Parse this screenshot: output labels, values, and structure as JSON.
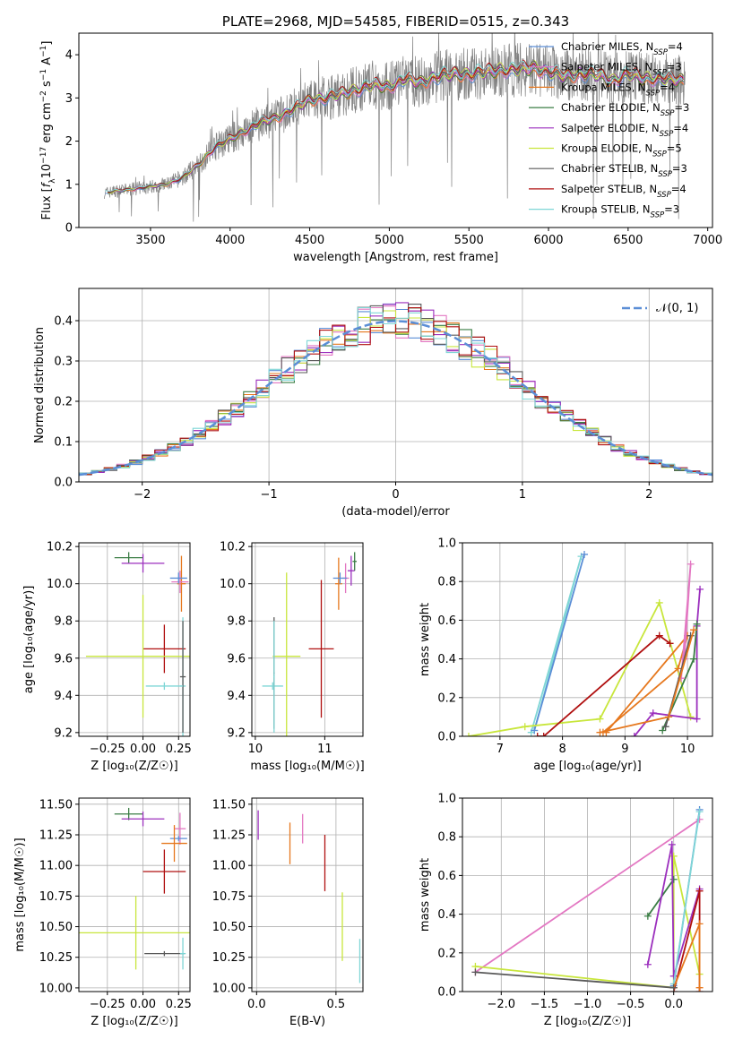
{
  "colors": {
    "chabrier_miles": "#5b8ed6",
    "salpeter_miles": "#e377c2",
    "kroupa_miles": "#e6781e",
    "chabrier_elodie": "#3a7d44",
    "salpeter_elodie": "#9b2fbd",
    "kroupa_elodie": "#c8e63c",
    "chabrier_stelib": "#5a5a5a",
    "salpeter_stelib": "#b01010",
    "kroupa_stelib": "#7fd6d6",
    "data_spectrum": "#808080",
    "normal_curve": "#5b8ed6",
    "grid": "#b0b0b0"
  },
  "chart_data": [
    {
      "id": "spectrum",
      "type": "line",
      "title": "PLATE=2968, MJD=54585, FIBERID=0515, z=0.343",
      "xlabel": "wavelength [Angstrom, rest frame]",
      "ylabel_parts": [
        "Flux [",
        "f",
        "λ",
        "10",
        "−17",
        " erg cm",
        "−2",
        " s",
        "−1",
        " A",
        "−1",
        "]"
      ],
      "xlim": [
        3050,
        7030
      ],
      "ylim": [
        0,
        4.5
      ],
      "xticks": [
        3500,
        4000,
        4500,
        5000,
        5500,
        6000,
        6500,
        7000
      ],
      "yticks": [
        0,
        1,
        2,
        3,
        4
      ],
      "grid": false,
      "legend_position": "right",
      "data_spectrum_range": [
        3210,
        6860
      ],
      "continuum": [
        [
          3200,
          0.8
        ],
        [
          3300,
          0.85
        ],
        [
          3450,
          0.92
        ],
        [
          3600,
          1.0
        ],
        [
          3700,
          1.15
        ],
        [
          3800,
          1.45
        ],
        [
          3900,
          1.85
        ],
        [
          4000,
          2.05
        ],
        [
          4100,
          2.25
        ],
        [
          4200,
          2.45
        ],
        [
          4300,
          2.55
        ],
        [
          4400,
          2.75
        ],
        [
          4500,
          2.95
        ],
        [
          4600,
          3.0
        ],
        [
          4700,
          3.1
        ],
        [
          4800,
          3.2
        ],
        [
          4900,
          3.3
        ],
        [
          5000,
          3.25
        ],
        [
          5100,
          3.45
        ],
        [
          5200,
          3.35
        ],
        [
          5300,
          3.5
        ],
        [
          5400,
          3.55
        ],
        [
          5500,
          3.55
        ],
        [
          5600,
          3.6
        ],
        [
          5700,
          3.65
        ],
        [
          5800,
          3.65
        ],
        [
          5900,
          3.7
        ],
        [
          6000,
          3.6
        ],
        [
          6100,
          3.5
        ],
        [
          6200,
          3.55
        ],
        [
          6300,
          3.55
        ],
        [
          6400,
          3.4
        ],
        [
          6500,
          3.55
        ],
        [
          6600,
          3.45
        ],
        [
          6700,
          3.45
        ],
        [
          6850,
          3.4
        ]
      ],
      "series": [
        {
          "name_prefix": "Chabrier MILES, N",
          "n_ssp": "=4",
          "color_key": "chabrier_miles"
        },
        {
          "name_prefix": "Salpeter MILES, N",
          "n_ssp": "=3",
          "color_key": "salpeter_miles"
        },
        {
          "name_prefix": "Kroupa MILES, N",
          "n_ssp": "=4",
          "color_key": "kroupa_miles"
        },
        {
          "name_prefix": "Chabrier ELODIE, N",
          "n_ssp": "=3",
          "color_key": "chabrier_elodie"
        },
        {
          "name_prefix": "Salpeter ELODIE, N",
          "n_ssp": "=4",
          "color_key": "salpeter_elodie"
        },
        {
          "name_prefix": "Kroupa ELODIE, N",
          "n_ssp": "=5",
          "color_key": "kroupa_elodie"
        },
        {
          "name_prefix": "Chabrier STELIB, N",
          "n_ssp": "=3",
          "color_key": "chabrier_stelib"
        },
        {
          "name_prefix": "Salpeter STELIB, N",
          "n_ssp": "=4",
          "color_key": "salpeter_stelib"
        },
        {
          "name_prefix": "Kroupa STELIB, N",
          "n_ssp": "=3",
          "color_key": "kroupa_stelib"
        }
      ],
      "n_ssp_subscript": "SSP"
    },
    {
      "id": "residuals",
      "type": "histogram",
      "xlabel": "(data-model)/error",
      "ylabel": "Normed distribution",
      "xlim": [
        -2.5,
        2.5
      ],
      "ylim": [
        0,
        0.48
      ],
      "xticks": [
        -2,
        -1,
        0,
        1,
        2
      ],
      "yticks": [
        0.0,
        0.1,
        0.2,
        0.3,
        0.4
      ],
      "grid": true,
      "legend": "𝒩(0, 1)",
      "legend_position": "top-right",
      "bin_width": 0.1
    },
    {
      "id": "age_vs_Z",
      "type": "errorbar",
      "xlabel": "Z [log₁₀(Z/Z☉)]",
      "ylabel": "age  [log₁₀(age/yr)]",
      "xlim": [
        -0.45,
        0.33
      ],
      "ylim": [
        9.18,
        10.22
      ],
      "xticks": [
        -0.25,
        0.0,
        0.25
      ],
      "yticks": [
        9.2,
        9.4,
        9.6,
        9.8,
        10.0,
        10.2
      ],
      "grid": true,
      "points": [
        {
          "c": "chabrier_elodie",
          "x": -0.1,
          "xe": 0.1,
          "y": 10.14,
          "ye": 0.03
        },
        {
          "c": "salpeter_elodie",
          "x": 0.0,
          "xe": 0.15,
          "y": 10.11,
          "ye": 0.05
        },
        {
          "c": "kroupa_miles",
          "x": 0.27,
          "xe": 0.03,
          "y": 10.0,
          "ye": 0.15
        },
        {
          "c": "salpeter_miles",
          "x": 0.26,
          "xe": 0.06,
          "y": 10.01,
          "ye": 0.06
        },
        {
          "c": "chabrier_miles",
          "x": 0.25,
          "xe": 0.06,
          "y": 10.03,
          "ye": 0.03
        },
        {
          "c": "salpeter_stelib",
          "x": 0.15,
          "xe": 0.15,
          "y": 9.65,
          "ye": 0.13
        },
        {
          "c": "kroupa_elodie",
          "x": 0.0,
          "xe": 0.4,
          "y": 9.61,
          "ye": 0.33
        },
        {
          "c": "kroupa_stelib",
          "x": 0.28,
          "xe": 0.02,
          "y": 9.45,
          "ye": 0.37
        },
        {
          "c": "chabrier_stelib",
          "x": 0.28,
          "xe": 0.02,
          "y": 9.5,
          "ye": 0.3
        },
        {
          "c": "kroupa_stelib",
          "x": 0.15,
          "xe": 0.13,
          "y": 9.45,
          "ye": 0.02
        }
      ]
    },
    {
      "id": "age_vs_mass",
      "type": "errorbar",
      "xlabel": "mass [log₁₀(M/M☉)]",
      "ylabel": "",
      "xlim": [
        9.95,
        11.55
      ],
      "ylim": [
        9.18,
        10.22
      ],
      "xticks": [
        10,
        11
      ],
      "yticks": [
        9.2,
        9.4,
        9.6,
        9.8,
        10.0,
        10.2
      ],
      "grid": true,
      "points": [
        {
          "c": "chabrier_elodie",
          "x": 11.43,
          "xe": 0.03,
          "y": 10.12,
          "ye": 0.05
        },
        {
          "c": "salpeter_elodie",
          "x": 11.38,
          "xe": 0.05,
          "y": 10.07,
          "ye": 0.08
        },
        {
          "c": "kroupa_miles",
          "x": 11.2,
          "xe": 0.05,
          "y": 10.0,
          "ye": 0.14
        },
        {
          "c": "salpeter_miles",
          "x": 11.3,
          "xe": 0.05,
          "y": 10.03,
          "ye": 0.08
        },
        {
          "c": "chabrier_miles",
          "x": 11.22,
          "xe": 0.1,
          "y": 10.03,
          "ye": 0.03
        },
        {
          "c": "salpeter_stelib",
          "x": 10.95,
          "xe": 0.18,
          "y": 9.65,
          "ye": 0.37
        },
        {
          "c": "kroupa_elodie",
          "x": 10.45,
          "xe": 0.2,
          "y": 9.61,
          "ye": 0.45
        },
        {
          "c": "kroupa_stelib",
          "x": 10.25,
          "xe": 0.15,
          "y": 9.45,
          "ye": 0.02
        },
        {
          "c": "chabrier_stelib",
          "x": 10.27,
          "xe": 0.01,
          "y": 9.52,
          "ye": 0.3
        },
        {
          "c": "kroupa_stelib",
          "x": 10.27,
          "xe": 0.01,
          "y": 9.5,
          "ye": 0.3
        }
      ]
    },
    {
      "id": "mass_weight_vs_age",
      "type": "line",
      "xlabel": "age  [log₁₀(age/yr)]",
      "ylabel": "mass weight",
      "xlim": [
        6.4,
        10.4
      ],
      "ylim": [
        0,
        1.0
      ],
      "xticks": [
        7,
        8,
        9,
        10
      ],
      "yticks": [
        0.0,
        0.2,
        0.4,
        0.6,
        0.8,
        1.0
      ],
      "grid": true,
      "series": [
        {
          "c": "kroupa_stelib",
          "points": [
            [
              7.5,
              0.02
            ],
            [
              8.3,
              0.93
            ],
            [
              7.55,
              0.03
            ]
          ]
        },
        {
          "c": "chabrier_miles",
          "points": [
            [
              7.55,
              0.03
            ],
            [
              8.35,
              0.94
            ]
          ]
        },
        {
          "c": "kroupa_elodie",
          "points": [
            [
              6.5,
              0.0
            ],
            [
              7.4,
              0.05
            ],
            [
              8.6,
              0.09
            ],
            [
              9.55,
              0.69
            ],
            [
              10.05,
              0.1
            ]
          ]
        },
        {
          "c": "salpeter_stelib",
          "points": [
            [
              7.6,
              0.0
            ],
            [
              7.7,
              0.0
            ],
            [
              9.55,
              0.52
            ],
            [
              9.72,
              0.48
            ]
          ]
        },
        {
          "c": "kroupa_miles",
          "points": [
            [
              8.65,
              0.02
            ],
            [
              9.85,
              0.35
            ],
            [
              10.0,
              0.52
            ],
            [
              8.7,
              0.02
            ]
          ]
        },
        {
          "c": "salpeter_elodie",
          "points": [
            [
              9.15,
              0.0
            ],
            [
              9.45,
              0.12
            ],
            [
              10.15,
              0.09
            ],
            [
              10.15,
              0.57
            ],
            [
              10.2,
              0.76
            ]
          ]
        },
        {
          "c": "chabrier_elodie",
          "points": [
            [
              9.6,
              0.03
            ],
            [
              10.1,
              0.4
            ],
            [
              10.15,
              0.58
            ]
          ]
        },
        {
          "c": "salpeter_miles",
          "points": [
            [
              9.9,
              0.3
            ],
            [
              10.05,
              0.89
            ],
            [
              9.95,
              0.4
            ]
          ]
        },
        {
          "c": "chabrier_stelib",
          "points": [
            [
              9.65,
              0.05
            ],
            [
              10.05,
              0.52
            ]
          ]
        },
        {
          "c": "kroupa_miles",
          "points": [
            [
              8.6,
              0.02
            ],
            [
              9.7,
              0.1
            ],
            [
              10.1,
              0.55
            ]
          ]
        }
      ]
    },
    {
      "id": "mass_vs_Z",
      "type": "errorbar",
      "xlabel": "Z [log₁₀(Z/Z☉)]",
      "ylabel": "mass [log₁₀(M/M☉)]",
      "xlim": [
        -0.45,
        0.33
      ],
      "ylim": [
        9.97,
        11.55
      ],
      "xticks": [
        -0.25,
        0.0,
        0.25
      ],
      "yticks": [
        10.0,
        10.25,
        10.5,
        10.75,
        11.0,
        11.25,
        11.5
      ],
      "grid": true,
      "points": [
        {
          "c": "chabrier_elodie",
          "x": -0.1,
          "xe": 0.1,
          "y": 11.42,
          "ye": 0.05
        },
        {
          "c": "salpeter_elodie",
          "x": 0.0,
          "xe": 0.15,
          "y": 11.38,
          "ye": 0.06
        },
        {
          "c": "salpeter_miles",
          "x": 0.26,
          "xe": 0.04,
          "y": 11.3,
          "ye": 0.13
        },
        {
          "c": "chabrier_miles",
          "x": 0.25,
          "xe": 0.06,
          "y": 11.22,
          "ye": 0.02
        },
        {
          "c": "kroupa_miles",
          "x": 0.22,
          "xe": 0.09,
          "y": 11.18,
          "ye": 0.15
        },
        {
          "c": "salpeter_stelib",
          "x": 0.15,
          "xe": 0.15,
          "y": 10.95,
          "ye": 0.18
        },
        {
          "c": "kroupa_elodie",
          "x": -0.05,
          "xe": 0.4,
          "y": 10.45,
          "ye": 0.3
        },
        {
          "c": "chabrier_stelib",
          "x": 0.15,
          "xe": 0.14,
          "y": 10.28,
          "ye": 0.02
        },
        {
          "c": "kroupa_stelib",
          "x": 0.28,
          "xe": 0.02,
          "y": 10.28,
          "ye": 0.13
        }
      ]
    },
    {
      "id": "mass_vs_ebv",
      "type": "errorbar",
      "xlabel": "E(B-V)",
      "ylabel": "",
      "xlim": [
        -0.03,
        0.67
      ],
      "ylim": [
        9.97,
        11.55
      ],
      "xticks": [
        0.0,
        0.5
      ],
      "yticks": [
        10.0,
        10.25,
        10.5,
        10.75,
        11.0,
        11.25,
        11.5
      ],
      "grid": true,
      "points": [
        {
          "c": "salpeter_elodie",
          "x": 0.01,
          "y": 11.33,
          "ye": 0.12
        },
        {
          "c": "kroupa_miles",
          "x": 0.21,
          "y": 11.18,
          "ye": 0.17
        },
        {
          "c": "salpeter_miles",
          "x": 0.29,
          "y": 11.3,
          "ye": 0.12
        },
        {
          "c": "salpeter_stelib",
          "x": 0.43,
          "y": 11.02,
          "ye": 0.23
        },
        {
          "c": "kroupa_elodie",
          "x": 0.54,
          "y": 10.5,
          "ye": 0.28
        },
        {
          "c": "kroupa_stelib",
          "x": 0.65,
          "y": 10.22,
          "ye": 0.18
        }
      ]
    },
    {
      "id": "mass_weight_vs_Z",
      "type": "line",
      "xlabel": "Z [log₁₀(Z/Z☉)]",
      "ylabel": "mass weight",
      "xlim": [
        -2.45,
        0.45
      ],
      "ylim": [
        0,
        1.0
      ],
      "xticks": [
        -2.0,
        -1.5,
        -1.0,
        -0.5,
        0.0
      ],
      "yticks": [
        0.0,
        0.2,
        0.4,
        0.6,
        0.8,
        1.0
      ],
      "grid": true,
      "series": [
        {
          "c": "salpeter_miles",
          "points": [
            [
              -2.3,
              0.1
            ],
            [
              0.3,
              0.89
            ]
          ]
        },
        {
          "c": "kroupa_elodie",
          "points": [
            [
              -2.3,
              0.13
            ],
            [
              0.0,
              0.02
            ],
            [
              0.0,
              0.7
            ],
            [
              0.3,
              0.09
            ]
          ]
        },
        {
          "c": "chabrier_elodie",
          "points": [
            [
              -0.3,
              0.39
            ],
            [
              0.0,
              0.58
            ]
          ]
        },
        {
          "c": "salpeter_elodie",
          "points": [
            [
              -0.3,
              0.14
            ],
            [
              -0.02,
              0.76
            ],
            [
              0.0,
              0.08
            ],
            [
              0.3,
              0.53
            ]
          ]
        },
        {
          "c": "chabrier_miles",
          "points": [
            [
              0.0,
              0.03
            ],
            [
              0.3,
              0.94
            ]
          ]
        },
        {
          "c": "kroupa_stelib",
          "points": [
            [
              0.0,
              0.04
            ],
            [
              0.3,
              0.93
            ]
          ]
        },
        {
          "c": "salpeter_stelib",
          "points": [
            [
              0.0,
              0.0
            ],
            [
              0.3,
              0.52
            ],
            [
              0.3,
              0.0
            ]
          ]
        },
        {
          "c": "kroupa_miles",
          "points": [
            [
              0.0,
              0.02
            ],
            [
              0.3,
              0.35
            ],
            [
              0.3,
              0.02
            ]
          ]
        },
        {
          "c": "chabrier_stelib",
          "points": [
            [
              -2.3,
              0.1
            ],
            [
              0.0,
              0.02
            ]
          ]
        }
      ]
    }
  ]
}
